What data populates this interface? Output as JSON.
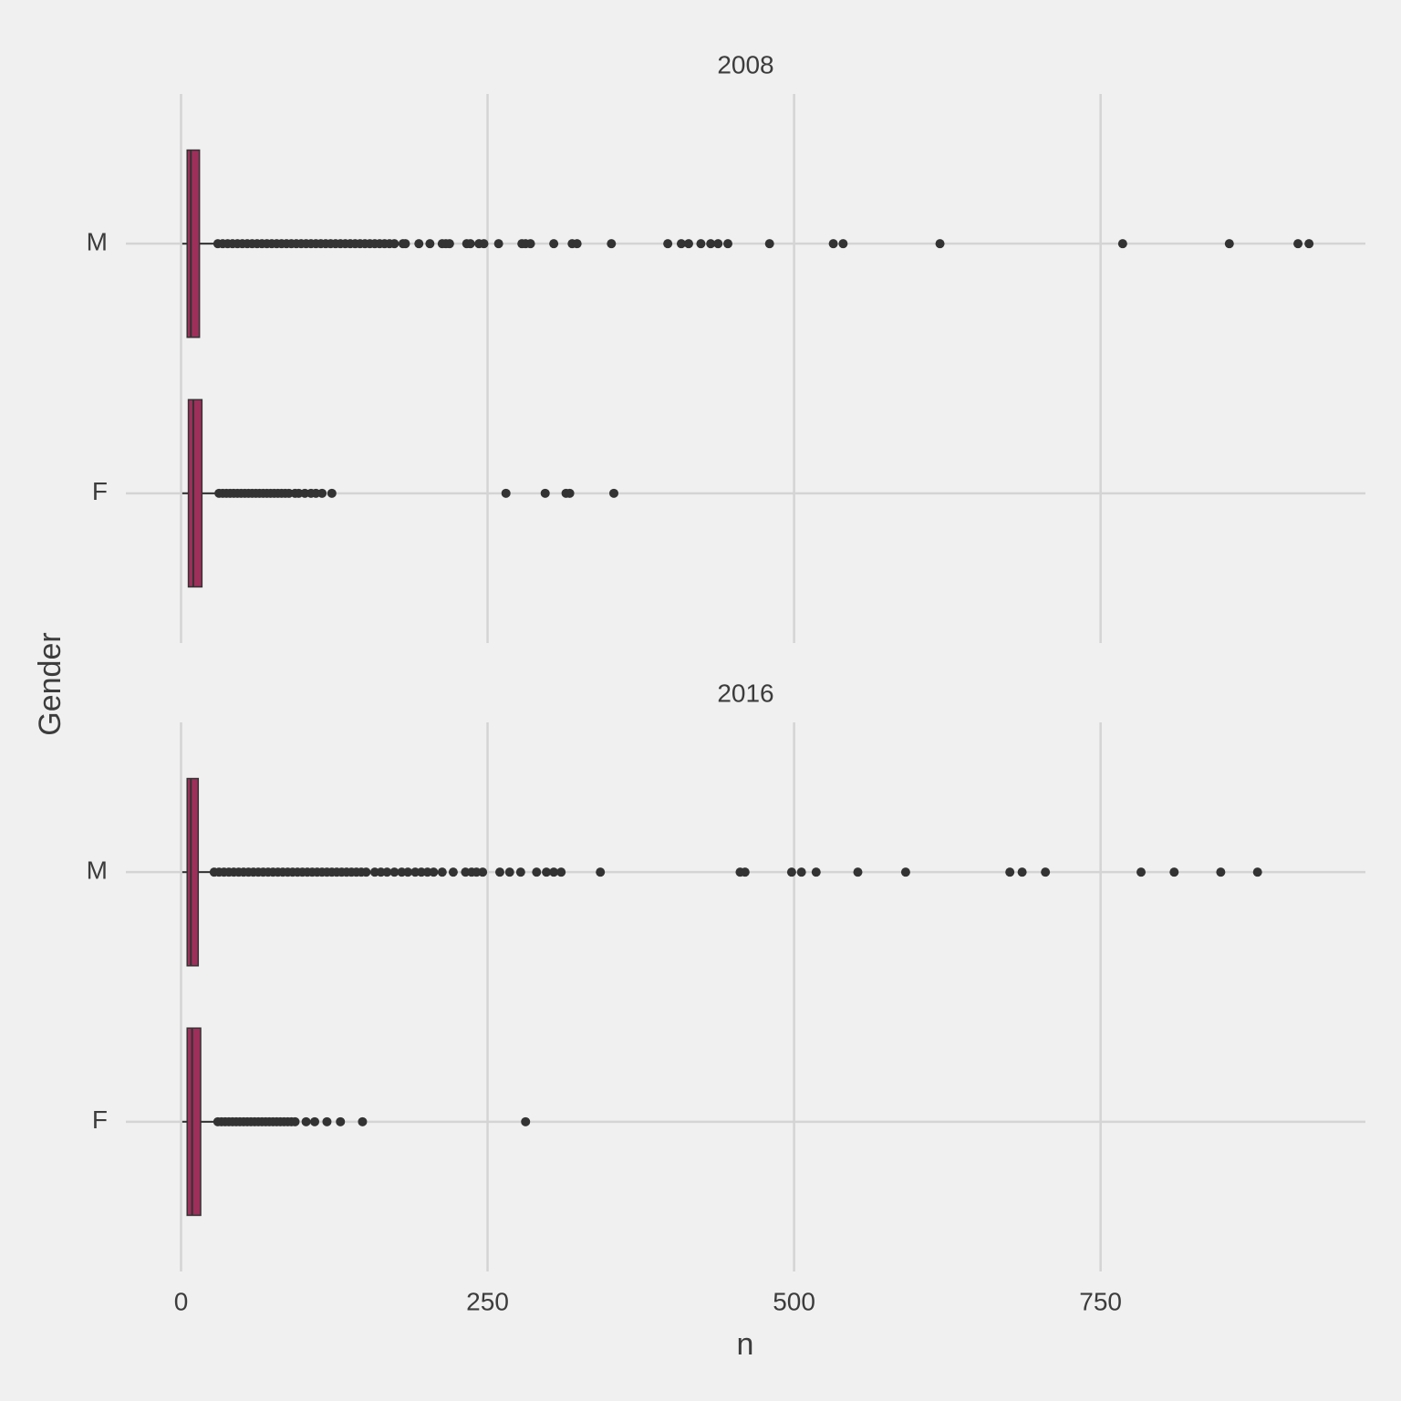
{
  "xlabel": "n",
  "ylabel": "Gender",
  "chart_data": [
    {
      "type": "boxplot",
      "title": "2008",
      "categories": [
        "M",
        "F"
      ],
      "boxes": [
        {
          "min": 1,
          "q1": 5,
          "median": 8,
          "q3": 15,
          "max": 29,
          "outliers": [
            30,
            34,
            38,
            42,
            46,
            50,
            54,
            58,
            62,
            66,
            70,
            74,
            78,
            82,
            86,
            90,
            94,
            98,
            102,
            106,
            110,
            114,
            118,
            122,
            126,
            130,
            134,
            138,
            142,
            146,
            150,
            154,
            158,
            162,
            166,
            170,
            174,
            181,
            183,
            194,
            203,
            213,
            216,
            219,
            233,
            236,
            243,
            247,
            259,
            278,
            281,
            285,
            304,
            319,
            323,
            351,
            397,
            408,
            414,
            424,
            432,
            438,
            446,
            480,
            532,
            540,
            619,
            768,
            855,
            911,
            920
          ]
        },
        {
          "min": 1,
          "q1": 6,
          "median": 10,
          "q3": 17,
          "max": 30,
          "outliers": [
            31,
            34,
            37,
            40,
            43,
            46,
            49,
            52,
            55,
            58,
            61,
            64,
            67,
            70,
            73,
            76,
            79,
            82,
            85,
            88,
            93,
            96,
            101,
            106,
            110,
            115,
            123,
            265,
            297,
            314,
            317,
            353
          ]
        }
      ],
      "color": "#9e2f5a",
      "xlim": [
        -45,
        966
      ],
      "xticks": [
        0,
        250,
        500,
        750
      ],
      "grid": true
    },
    {
      "type": "boxplot",
      "title": "2016",
      "categories": [
        "M",
        "F"
      ],
      "boxes": [
        {
          "min": 1,
          "q1": 5,
          "median": 8,
          "q3": 14,
          "max": 26,
          "outliers": [
            27,
            31,
            35,
            39,
            43,
            47,
            51,
            55,
            59,
            63,
            67,
            71,
            75,
            79,
            83,
            87,
            91,
            95,
            99,
            103,
            107,
            111,
            115,
            119,
            123,
            127,
            131,
            135,
            139,
            143,
            147,
            151,
            158,
            163,
            168,
            174,
            180,
            185,
            191,
            196,
            201,
            206,
            213,
            222,
            232,
            237,
            241,
            246,
            260,
            268,
            277,
            290,
            298,
            304,
            310,
            342,
            456,
            460,
            498,
            506,
            518,
            552,
            591,
            676,
            686,
            705,
            783,
            810,
            848,
            878
          ]
        },
        {
          "min": 1,
          "q1": 5,
          "median": 9,
          "q3": 16,
          "max": 29,
          "outliers": [
            30,
            33,
            36,
            39,
            42,
            45,
            48,
            51,
            54,
            57,
            60,
            63,
            66,
            69,
            72,
            75,
            78,
            81,
            84,
            87,
            90,
            93,
            102,
            109,
            119,
            130,
            148,
            281
          ]
        }
      ],
      "color": "#9e2f5a",
      "xlim": [
        -45,
        966
      ],
      "xticks": [
        0,
        250,
        500,
        750
      ],
      "grid": true
    }
  ]
}
